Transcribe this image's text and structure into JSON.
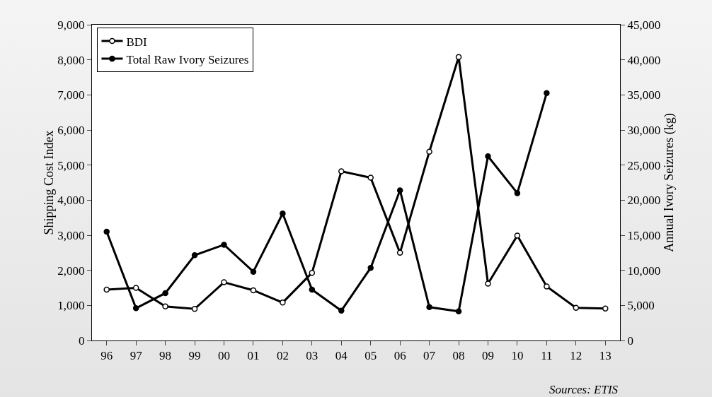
{
  "chart_data": {
    "type": "line",
    "categories": [
      "96",
      "97",
      "98",
      "99",
      "00",
      "01",
      "02",
      "03",
      "04",
      "05",
      "06",
      "07",
      "08",
      "09",
      "10",
      "11",
      "12",
      "13"
    ],
    "ylabel": "Shipping Cost Index",
    "y2label": "Annual Ivory Seizures (kg)",
    "ylim": [
      0,
      9000
    ],
    "yticks": [
      {
        "value": 0,
        "label": "0"
      },
      {
        "value": 1000,
        "label": "1,000"
      },
      {
        "value": 2000,
        "label": "2,000"
      },
      {
        "value": 3000,
        "label": "3,000"
      },
      {
        "value": 4000,
        "label": "4,000"
      },
      {
        "value": 5000,
        "label": "5,000"
      },
      {
        "value": 6000,
        "label": "6,000"
      },
      {
        "value": 7000,
        "label": "7,000"
      },
      {
        "value": 8000,
        "label": "8,000"
      },
      {
        "value": 9000,
        "label": "9,000"
      }
    ],
    "y2lim": [
      0,
      45000
    ],
    "y2ticks": [
      {
        "value": 0,
        "label": "0"
      },
      {
        "value": 5000,
        "label": "5,000"
      },
      {
        "value": 10000,
        "label": "10,000"
      },
      {
        "value": 15000,
        "label": "15,000"
      },
      {
        "value": 20000,
        "label": "20,000"
      },
      {
        "value": 25000,
        "label": "25,000"
      },
      {
        "value": 30000,
        "label": "30,000"
      },
      {
        "value": 35000,
        "label": "35,000"
      },
      {
        "value": 40000,
        "label": "40,000"
      },
      {
        "value": 45000,
        "label": "45,000"
      }
    ],
    "series": [
      {
        "name": "BDI",
        "color": "#000000",
        "marker": "circle-open",
        "values": [
          1450,
          1500,
          970,
          900,
          1660,
          1430,
          1080,
          1930,
          4820,
          4640,
          2500,
          5380,
          8080,
          1620,
          2990,
          1540,
          930,
          910
        ]
      },
      {
        "name": "Total Raw Ivory Seizures",
        "color": "#000000",
        "marker": "circle",
        "axis": "y2",
        "values": [
          15500,
          4600,
          6750,
          12150,
          13650,
          9800,
          18100,
          7250,
          4250,
          10350,
          21400,
          4750,
          4150,
          26250,
          21000,
          35250,
          null,
          null
        ]
      }
    ],
    "grid": false,
    "legend": "top left",
    "line_style": "solid",
    "annotations": [
      "Sources: ETIS"
    ]
  }
}
